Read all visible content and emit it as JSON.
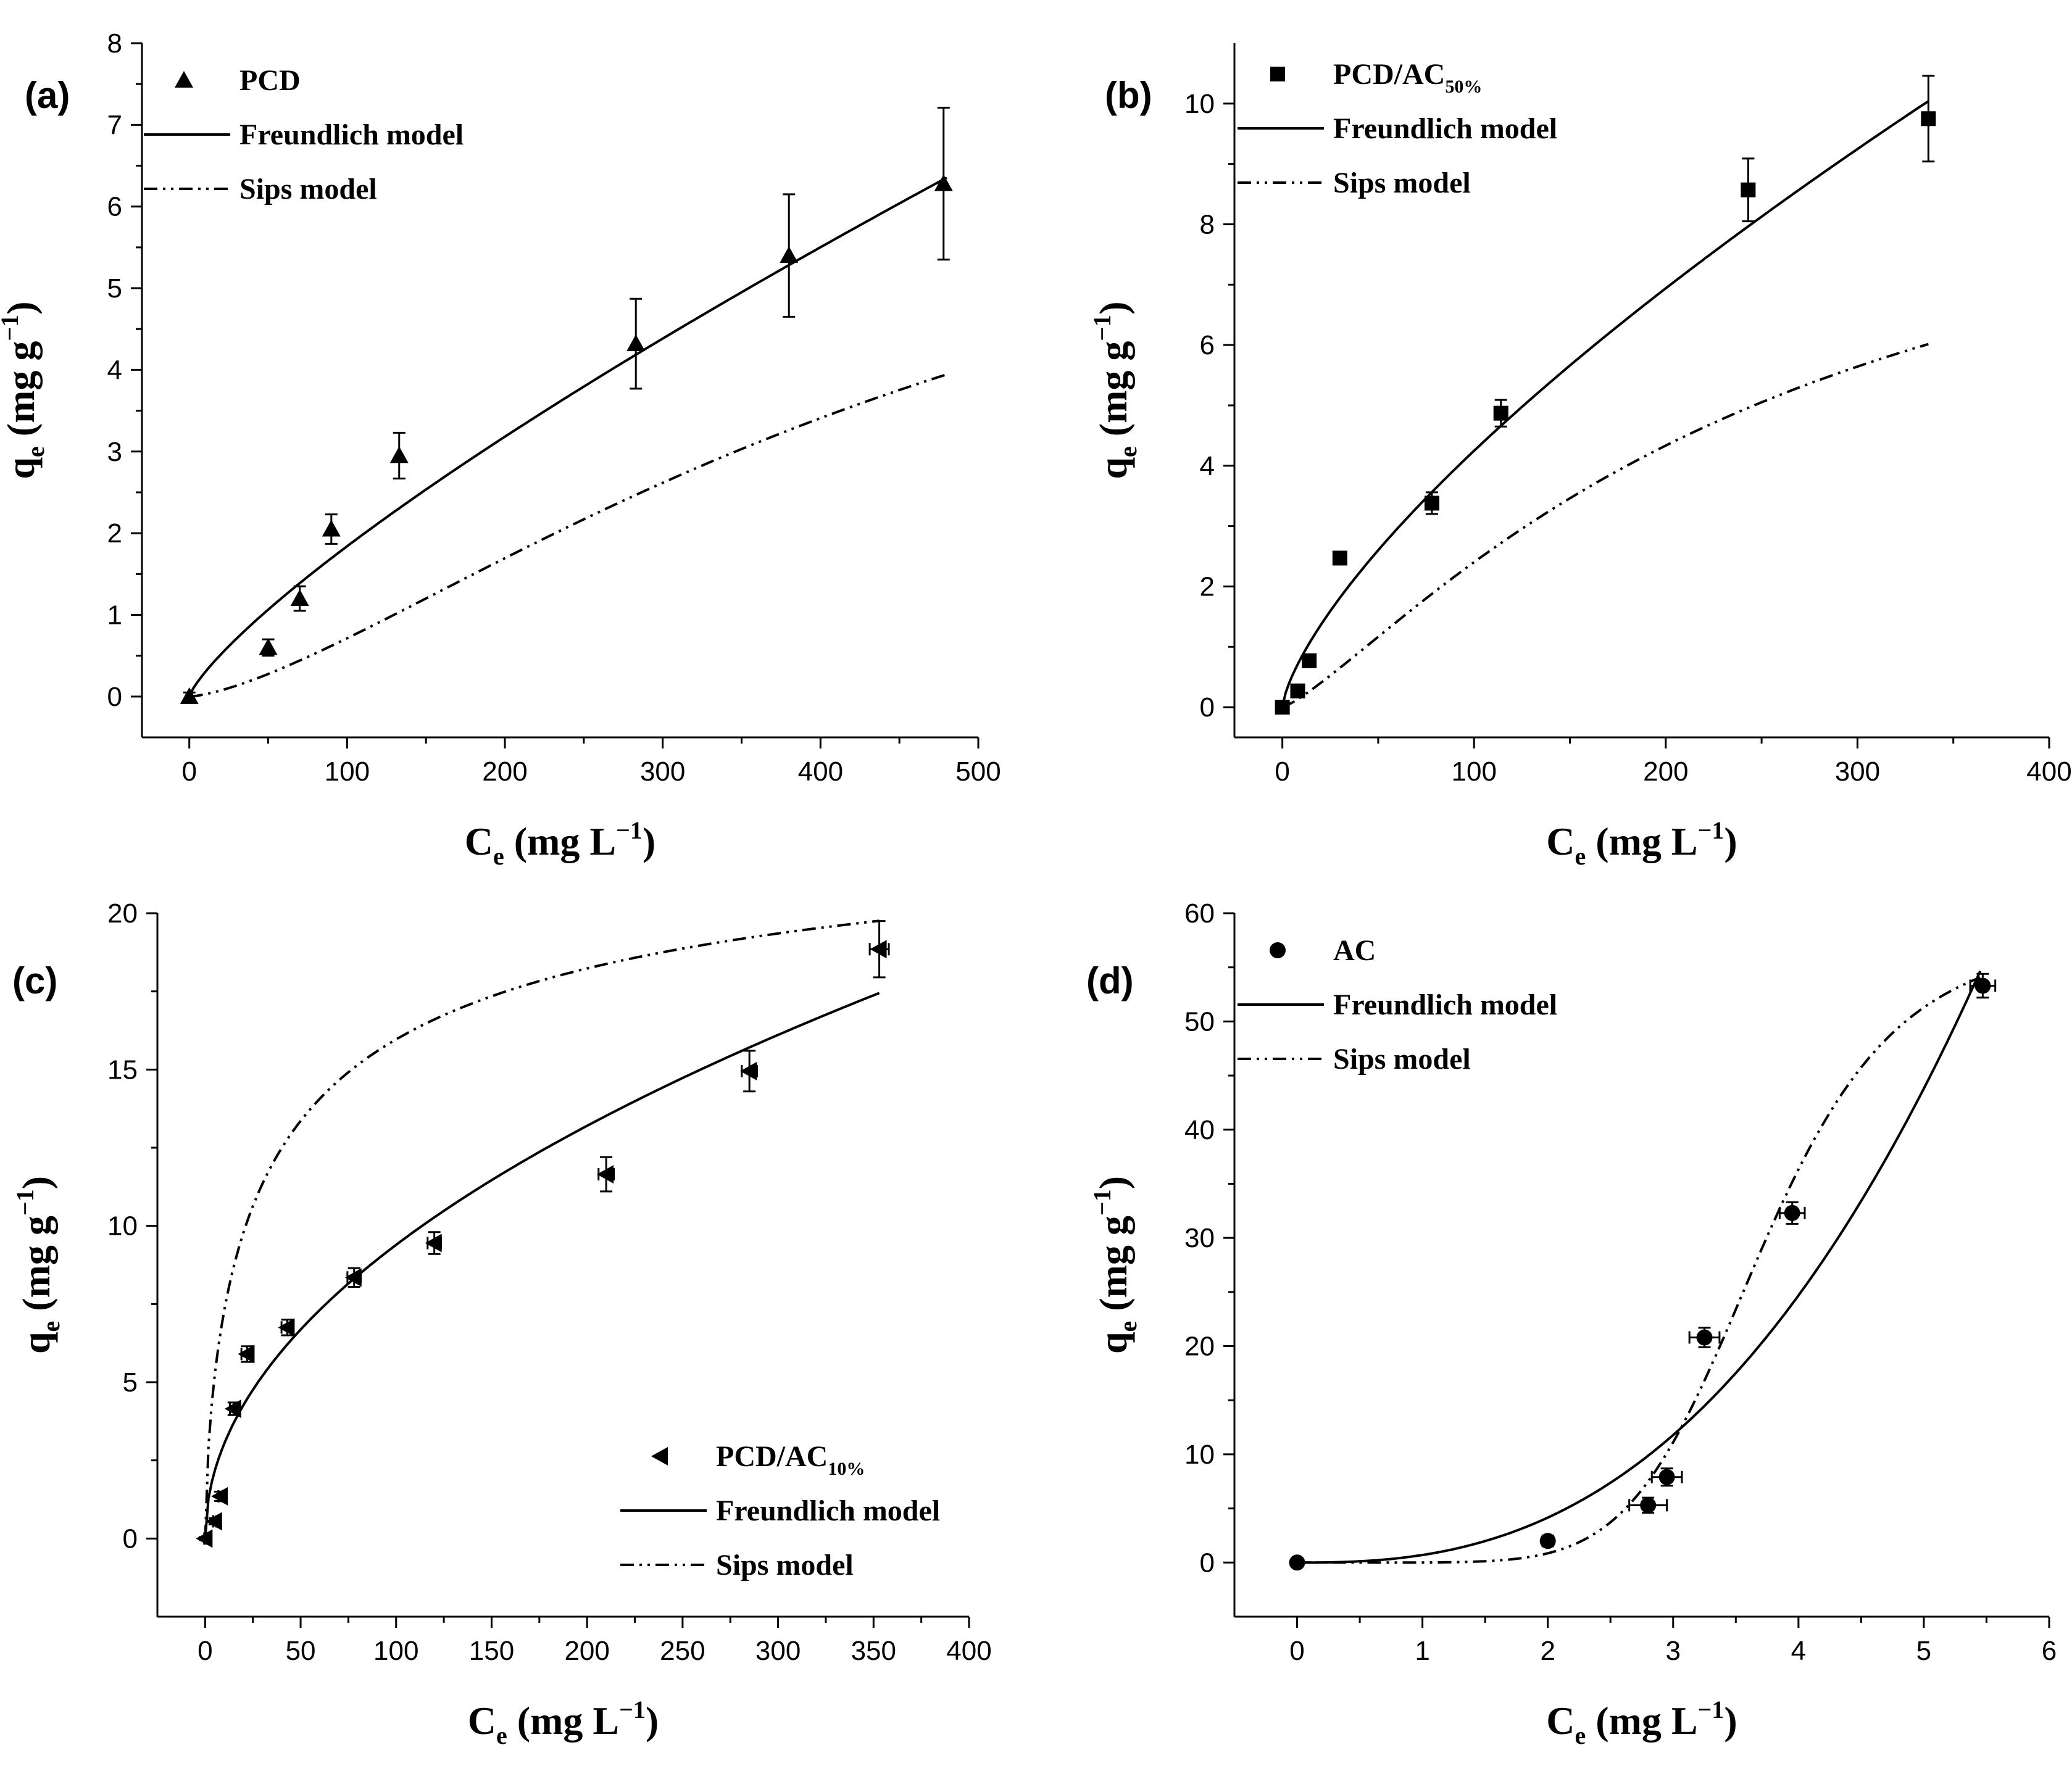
{
  "chart_data": [
    {
      "type": "scatter",
      "panel_label": "(a)",
      "xlabel_main": "C",
      "xlabel_sub": "e",
      "xlabel_unit": " (mg L",
      "xlabel_exp": "−1",
      "xlabel_close": ")",
      "ylabel_main": "q",
      "ylabel_sub": "e",
      "ylabel_unit": " (mg g",
      "ylabel_exp": "−1",
      "ylabel_close": ")",
      "xlim": [
        -30,
        500
      ],
      "ylim": [
        -0.5,
        8
      ],
      "xticks": [
        0,
        100,
        200,
        300,
        400,
        500
      ],
      "yticks": [
        0,
        1,
        2,
        3,
        4,
        5,
        6,
        7,
        8
      ],
      "legend_position": "top-left",
      "series": [
        {
          "name": "PCD",
          "marker": "triangle-up",
          "x": [
            0,
            50,
            70,
            90,
            133,
            283,
            380,
            478
          ],
          "y": [
            0,
            0.6,
            1.2,
            2.05,
            2.95,
            4.32,
            5.4,
            6.28
          ],
          "yerr": [
            0.05,
            0.1,
            0.15,
            0.18,
            0.28,
            0.55,
            0.75,
            0.93
          ]
        }
      ],
      "fits": [
        {
          "name": "Freundlich model",
          "style": "solid",
          "model": "freundlich",
          "K": 0.0484,
          "n": 0.79,
          "x_max": 480
        },
        {
          "name": "Sips model",
          "style": "dash-dot-dot",
          "model": "sips",
          "qm": 8.2,
          "Ks": 0.00012,
          "n": 1.45,
          "x_max": 480
        }
      ]
    },
    {
      "type": "scatter",
      "panel_label": "(b)",
      "xlabel_main": "C",
      "xlabel_sub": "e",
      "xlabel_unit": " (mg L",
      "xlabel_exp": "−1",
      "xlabel_close": ")",
      "ylabel_main": "q",
      "ylabel_sub": "e",
      "ylabel_unit": " (mg g",
      "ylabel_exp": "−1",
      "ylabel_close": ")",
      "xlim": [
        -25,
        400
      ],
      "ylim": [
        -0.5,
        11
      ],
      "xticks": [
        0,
        100,
        200,
        300,
        400
      ],
      "yticks": [
        0,
        2,
        4,
        6,
        8,
        10
      ],
      "legend_position": "top-left",
      "series": [
        {
          "name": "PCD/AC",
          "name_sub": "50%",
          "marker": "square",
          "x": [
            0,
            8,
            14,
            30,
            78,
            114,
            243,
            337
          ],
          "y": [
            0,
            0.27,
            0.77,
            2.47,
            3.38,
            4.87,
            8.57,
            9.75
          ],
          "yerr": [
            0.03,
            0.04,
            0.07,
            0.06,
            0.18,
            0.22,
            0.52,
            0.71
          ]
        }
      ],
      "fits": [
        {
          "name": "Freundlich model",
          "style": "solid",
          "model": "freundlich",
          "K": 0.163,
          "n": 0.708,
          "x_max": 337
        },
        {
          "name": "Sips model",
          "style": "dash-dot-dot",
          "model": "sips",
          "qm": 10.4,
          "Ks": 0.00095,
          "n": 1.25,
          "x_max": 337
        }
      ]
    },
    {
      "type": "scatter",
      "panel_label": "(c)",
      "xlabel_main": "C",
      "xlabel_sub": "e",
      "xlabel_unit": " (mg L",
      "xlabel_exp": "−1",
      "xlabel_close": ")",
      "ylabel_main": "q",
      "ylabel_sub": "e",
      "ylabel_unit": " (mg g",
      "ylabel_exp": "−1",
      "ylabel_close": ")",
      "xlim": [
        -25,
        400
      ],
      "ylim": [
        -2.5,
        20
      ],
      "xticks": [
        0,
        50,
        100,
        150,
        200,
        250,
        300,
        350,
        400
      ],
      "yticks": [
        0,
        5,
        10,
        15,
        20
      ],
      "legend_position": "bottom-right",
      "series": [
        {
          "name": "PCD/AC",
          "name_sub": "10%",
          "marker": "triangle-left",
          "x": [
            0,
            5,
            8,
            15,
            22,
            43,
            78,
            120,
            210,
            285,
            353
          ],
          "y": [
            0,
            0.55,
            1.35,
            4.15,
            5.9,
            6.75,
            8.35,
            9.45,
            11.65,
            14.95,
            18.85
          ],
          "yerr": [
            0.05,
            0.1,
            0.15,
            0.2,
            0.25,
            0.25,
            0.3,
            0.35,
            0.55,
            0.65,
            0.9
          ],
          "xerr": [
            0.5,
            0.8,
            1.0,
            2.0,
            3.0,
            3.0,
            3.5,
            3.5,
            4.0,
            4.0,
            5.0
          ]
        }
      ],
      "fits": [
        {
          "name": "Freundlich model",
          "style": "solid",
          "model": "freundlich",
          "K": 0.979,
          "n": 0.491,
          "x_max": 353
        },
        {
          "name": "Sips model",
          "style": "dash-dot-dot",
          "model": "sips",
          "qm": 24.3,
          "Ks": 0.096,
          "n": 0.65,
          "x_max": 353
        }
      ]
    },
    {
      "type": "scatter",
      "panel_label": "(d)",
      "xlabel_main": "C",
      "xlabel_sub": "e",
      "xlabel_unit": " (mg L",
      "xlabel_exp": "−1",
      "xlabel_close": ")",
      "ylabel_main": "q",
      "ylabel_sub": "e",
      "ylabel_unit": " (mg g",
      "ylabel_exp": "−1",
      "ylabel_close": ")",
      "xlim": [
        -0.5,
        6
      ],
      "ylim": [
        -5,
        60
      ],
      "xticks": [
        0,
        1,
        2,
        3,
        4,
        5,
        6
      ],
      "yticks": [
        0,
        10,
        20,
        30,
        40,
        50,
        60
      ],
      "legend_position": "top-left",
      "series": [
        {
          "name": "AC",
          "marker": "circle",
          "x": [
            0,
            2.0,
            2.8,
            2.95,
            3.25,
            3.95,
            5.47
          ],
          "y": [
            0,
            2.0,
            5.3,
            7.9,
            20.8,
            32.3,
            53.3
          ],
          "yerr": [
            0.3,
            0.5,
            0.7,
            0.8,
            0.9,
            1.0,
            1.1
          ],
          "xerr": [
            0.02,
            0.03,
            0.15,
            0.12,
            0.12,
            0.1,
            0.1
          ]
        }
      ],
      "fits": [
        {
          "name": "Freundlich model",
          "style": "solid",
          "model": "freundlich",
          "K": 0.7,
          "n": 2.57,
          "x_max": 5.45
        },
        {
          "name": "Sips model",
          "style": "dash-dot-dot",
          "model": "sips",
          "qm": 58,
          "Ks": 0.000135,
          "n": 6.8,
          "x_max": 5.45
        }
      ]
    }
  ]
}
